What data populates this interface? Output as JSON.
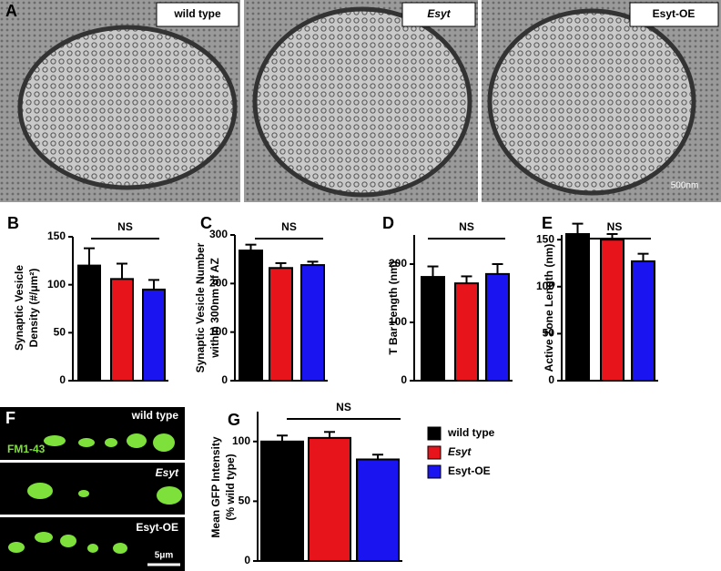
{
  "micrographs": {
    "panel": "A",
    "labels": [
      "wild type",
      "Esyt",
      "Esyt-OE"
    ],
    "scale": "500nm"
  },
  "fluorescence": {
    "panel": "F",
    "dye": "FM1-43",
    "labels": [
      "wild type",
      "Esyt",
      "Esyt-OE"
    ],
    "scale": "5μm"
  },
  "chart_data": [
    {
      "type": "bar",
      "panel": "B",
      "ylabel": [
        "Synaptic Vesicle",
        "Density (#/μm²)"
      ],
      "annotation": "NS",
      "ylim": [
        0,
        150
      ],
      "yticks": [
        0,
        50,
        100,
        150
      ],
      "series": [
        {
          "color": "#000000",
          "values": [
            120
          ],
          "errors": [
            18
          ]
        },
        {
          "color": "#e8141c",
          "values": [
            106
          ],
          "errors": [
            16
          ]
        },
        {
          "color": "#1a14f0",
          "values": [
            95
          ],
          "errors": [
            10
          ]
        }
      ]
    },
    {
      "type": "bar",
      "panel": "C",
      "ylabel": [
        "Synaptic Vesicle Number",
        "within 300nm of AZ"
      ],
      "annotation": "NS",
      "ylim": [
        0,
        300
      ],
      "yticks": [
        0,
        100,
        200,
        300
      ],
      "series": [
        {
          "color": "#000000",
          "values": [
            268
          ],
          "errors": [
            12
          ]
        },
        {
          "color": "#e8141c",
          "values": [
            232
          ],
          "errors": [
            10
          ]
        },
        {
          "color": "#1a14f0",
          "values": [
            238
          ],
          "errors": [
            7
          ]
        }
      ]
    },
    {
      "type": "bar",
      "panel": "D",
      "ylabel": [
        "T Bar Length (nm)"
      ],
      "annotation": "NS",
      "ylim": [
        0,
        250
      ],
      "yticks": [
        0,
        100,
        200
      ],
      "series": [
        {
          "color": "#000000",
          "values": [
            178
          ],
          "errors": [
            18
          ]
        },
        {
          "color": "#e8141c",
          "values": [
            167
          ],
          "errors": [
            12
          ]
        },
        {
          "color": "#1a14f0",
          "values": [
            183
          ],
          "errors": [
            17
          ]
        }
      ]
    },
    {
      "type": "bar",
      "panel": "E",
      "ylabel": [
        "Active Zone Length (nm)"
      ],
      "annotation": "NS",
      "ylim": [
        0,
        155
      ],
      "yticks": [
        0,
        50,
        100,
        150
      ],
      "series": [
        {
          "color": "#000000",
          "values": [
            156
          ],
          "errors": [
            11
          ]
        },
        {
          "color": "#e8141c",
          "values": [
            150
          ],
          "errors": [
            6
          ]
        },
        {
          "color": "#1a14f0",
          "values": [
            127
          ],
          "errors": [
            8
          ]
        }
      ]
    },
    {
      "type": "bar",
      "panel": "G",
      "ylabel": [
        "Mean GFP Intensity",
        "(% wild type)"
      ],
      "annotation": "NS",
      "ylim": [
        0,
        125
      ],
      "yticks": [
        0,
        50,
        100
      ],
      "series": [
        {
          "name": "wild type",
          "color": "#000000",
          "values": [
            100
          ],
          "errors": [
            5
          ]
        },
        {
          "name": "Esyt",
          "color": "#e8141c",
          "values": [
            103
          ],
          "errors": [
            5
          ]
        },
        {
          "name": "Esyt-OE",
          "color": "#1a14f0",
          "values": [
            85
          ],
          "errors": [
            4
          ]
        }
      ]
    }
  ]
}
